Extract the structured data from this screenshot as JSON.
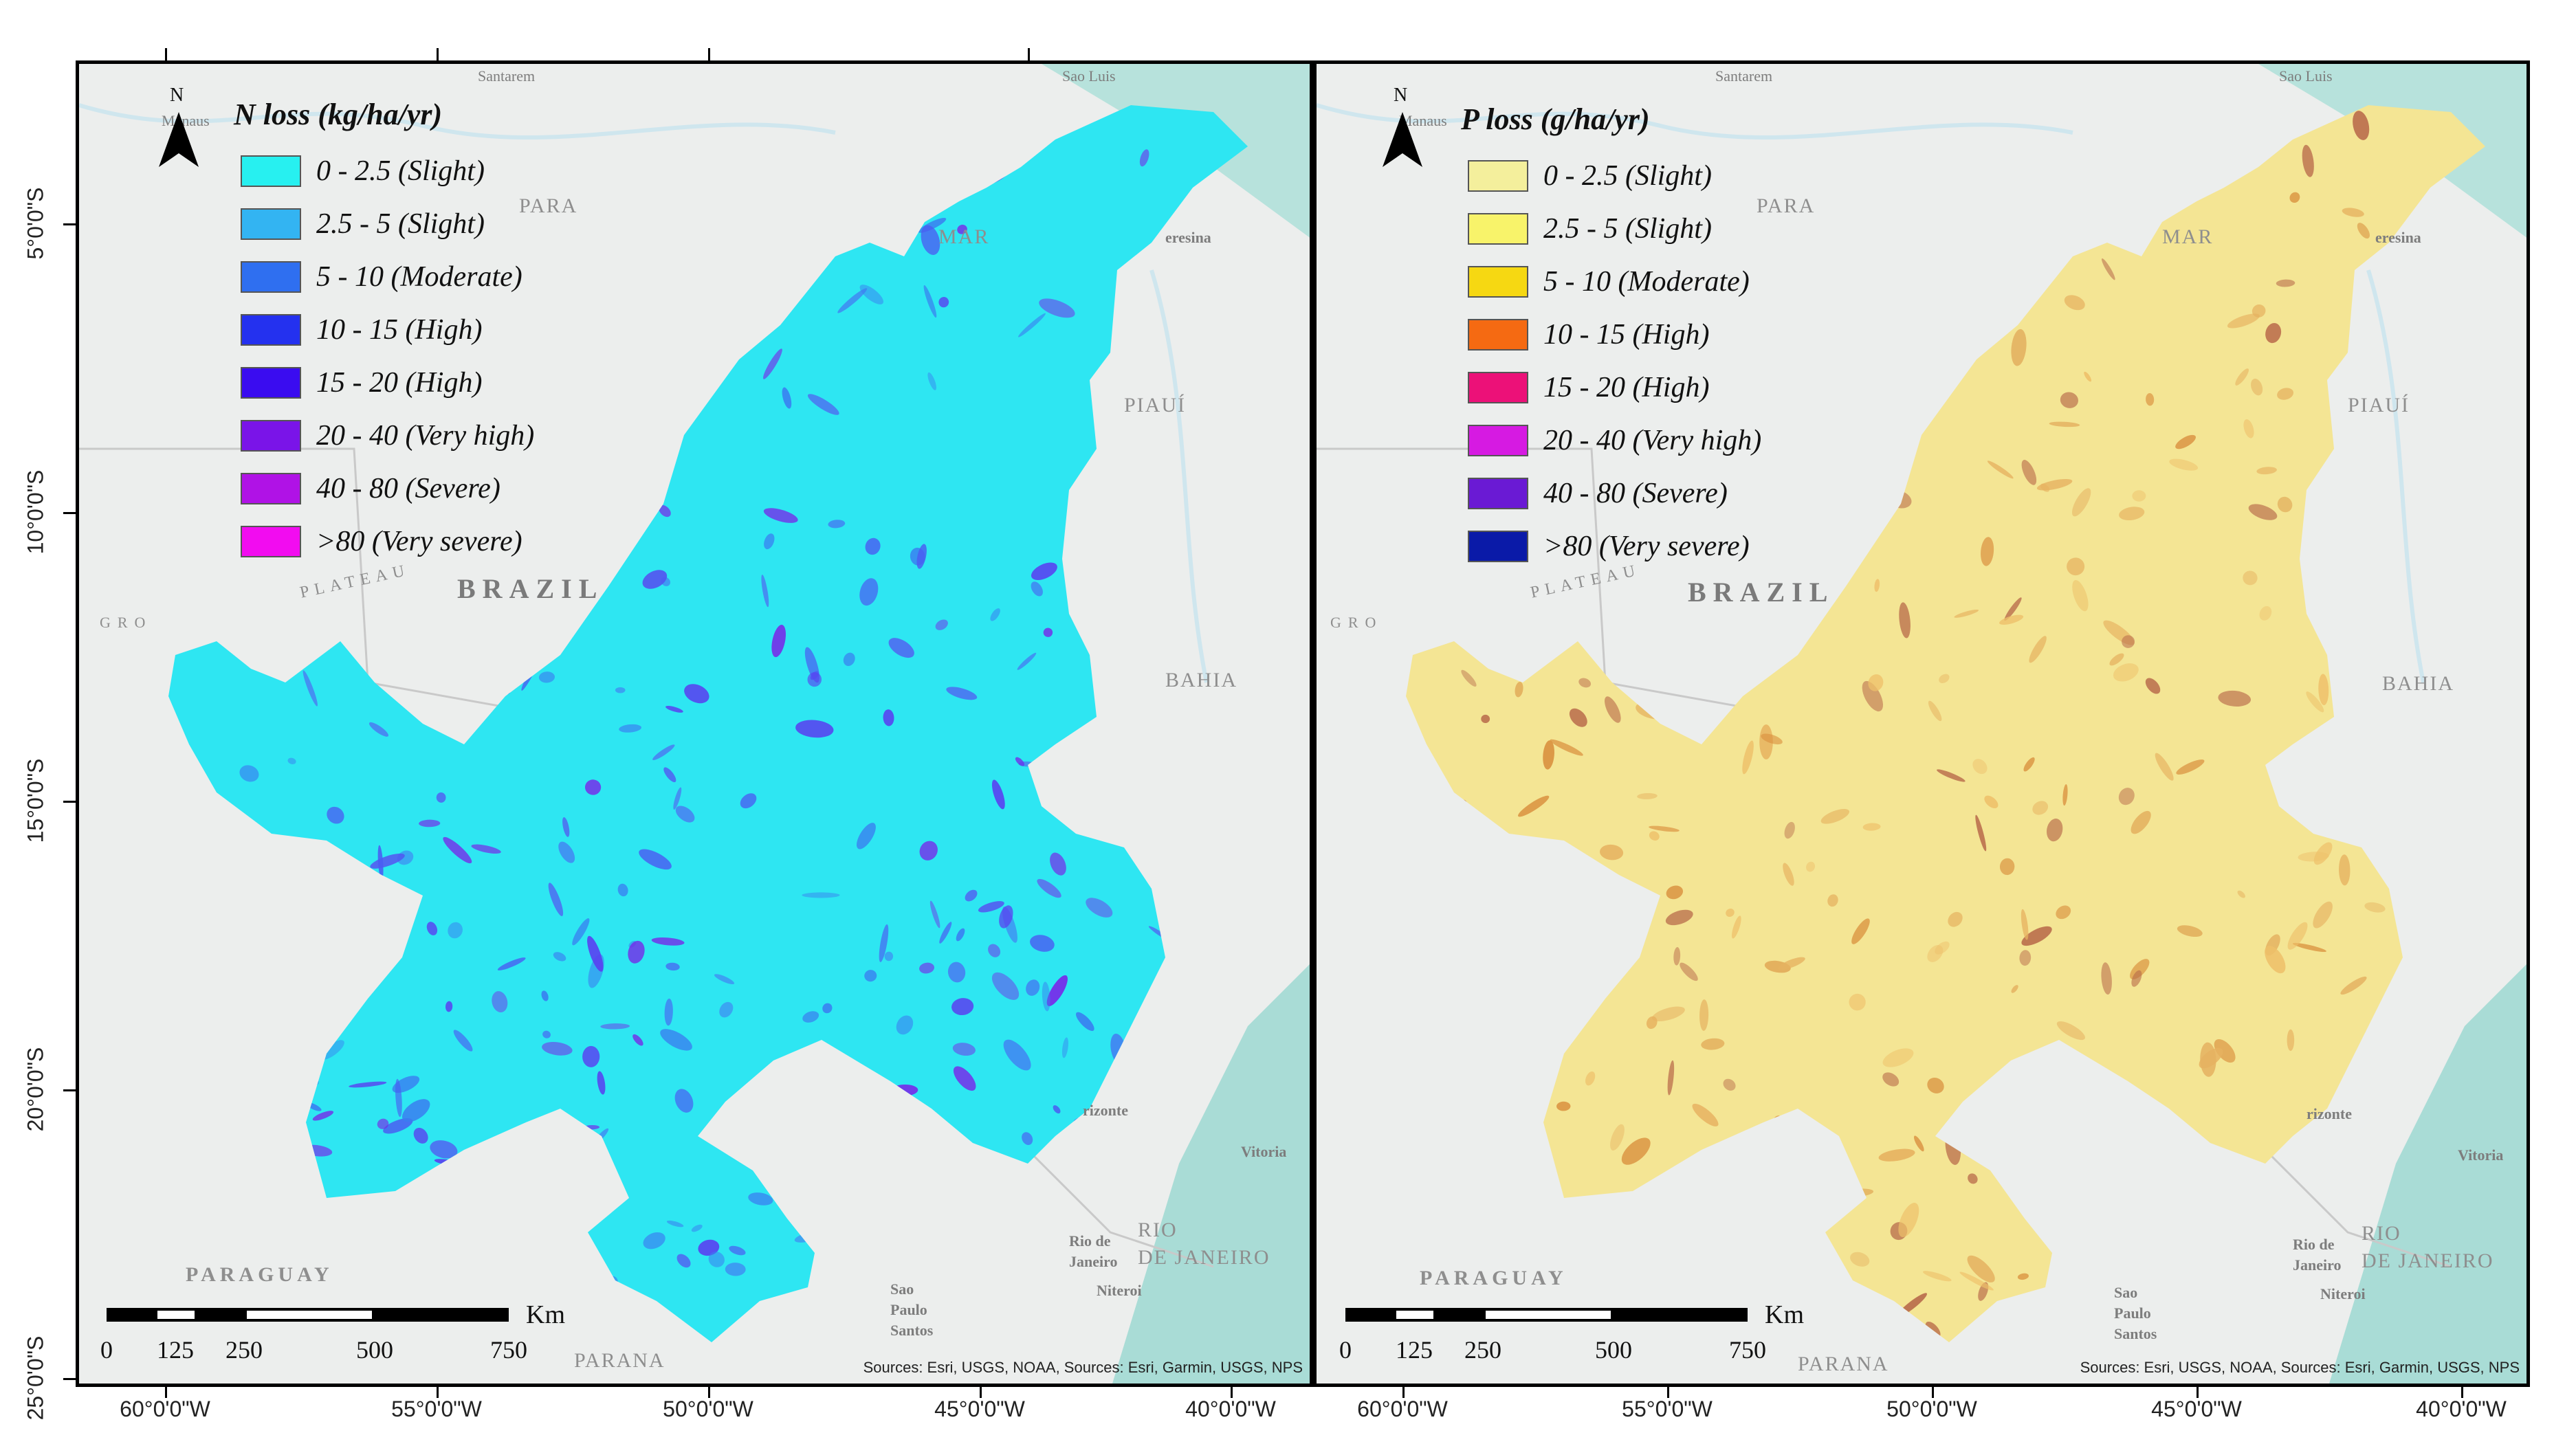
{
  "maps": {
    "n": {
      "legend_title": "N loss (kg/ha/yr)",
      "legend": [
        {
          "label": "0 - 2.5 (Slight)",
          "color": "#27f0f0"
        },
        {
          "label": "2.5 - 5 (Slight)",
          "color": "#33b4f2"
        },
        {
          "label": "5 - 10 (Moderate)",
          "color": "#2f6ff0"
        },
        {
          "label": "10 - 15 (High)",
          "color": "#2431ef"
        },
        {
          "label": "15 - 20 (High)",
          "color": "#3a0cf0"
        },
        {
          "label": "20 - 40 (Very high)",
          "color": "#7a14e8"
        },
        {
          "label": "40 - 80 (Severe)",
          "color": "#b012e6"
        },
        {
          "label": ">80 (Very severe)",
          "color": "#f20cf0"
        }
      ],
      "region_color": "#2ee6f2",
      "patch_colors": [
        "#3a7ef0",
        "#5a3ef0",
        "#7a22e8",
        "#4a5cf2"
      ]
    },
    "p": {
      "legend_title": "P loss (g/ha/yr)",
      "legend": [
        {
          "label": "0 - 2.5 (Slight)",
          "color": "#f4ef9c"
        },
        {
          "label": "2.5 - 5 (Slight)",
          "color": "#f8f36a"
        },
        {
          "label": "5 - 10 (Moderate)",
          "color": "#f6d812"
        },
        {
          "label": "10 - 15 (High)",
          "color": "#f56a12"
        },
        {
          "label": "15 - 20 (High)",
          "color": "#ec1178"
        },
        {
          "label": "20 - 40 (Very high)",
          "color": "#d61ae2"
        },
        {
          "label": "40 - 80 (Severe)",
          "color": "#6a1ad4"
        },
        {
          "label": ">80 (Very severe)",
          "color": "#0a1aa8"
        }
      ],
      "region_color": "#f4e594",
      "patch_colors": [
        "#e6b260",
        "#d9903e",
        "#b86a4a",
        "#eec06a"
      ]
    }
  },
  "north_label": "N",
  "place_labels": {
    "santarem": "Santarem",
    "manaus": "Manaus",
    "sao_luis": "Sao Luis",
    "para": "PARA",
    "maranhao": "MAR",
    "teresina": "eresina",
    "piaui": "PIAUÍ",
    "plateau": "PLATEAU",
    "gro": "GRO",
    "brazil": "BRAZIL",
    "bahia": "BAHIA",
    "horizonte": "rizonte",
    "vitoria": "Vitoria",
    "rio": "RIO",
    "de_janeiro": "DE JANEIRO",
    "rio_de": "Rio de",
    "janeiro": "Janeiro",
    "niteroi": "Niteroi",
    "sao": "Sao",
    "paulo": "Paulo",
    "santos": "Santos",
    "paraguay": "PARAGUAY",
    "parana": "PARANA"
  },
  "scalebar": {
    "unit": "Km",
    "ticks": [
      "0",
      "125",
      "250",
      "500",
      "750"
    ]
  },
  "sources": "Sources: Esri, USGS, NOAA, Sources: Esri, Garmin, USGS, NPS",
  "lon_ticks_n": [
    "60°0'0\"W",
    "55°0'0\"W",
    "50°0'0\"W",
    "45°0'0\"W",
    "40°0'0\"W"
  ],
  "lon_ticks_p": [
    "60°0'0\"W",
    "55°0'0\"W",
    "50°0'0\"W",
    "45°0'0\"W",
    "40°0'0\"W"
  ],
  "lat_ticks": [
    "5°0'0\"S",
    "10°0'0\"S",
    "15°0'0\"S",
    "20°0'0\"S",
    "25°0'0\"S"
  ]
}
